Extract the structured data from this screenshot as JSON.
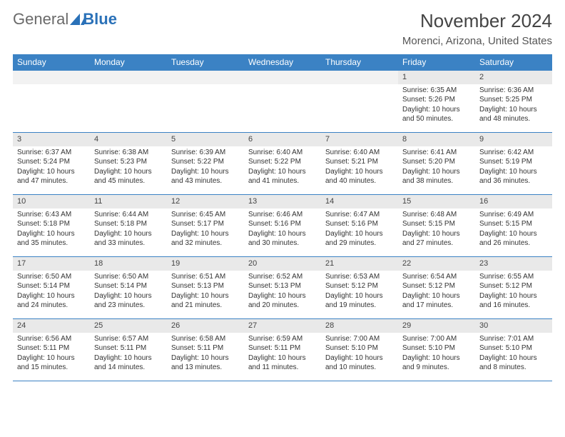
{
  "logo": {
    "general": "General",
    "blue": "Blue"
  },
  "title": "November 2024",
  "location": "Morenci, Arizona, United States",
  "colors": {
    "header_bar": "#3b82c4",
    "week_divider": "#3b82c4",
    "daynum_bg": "#e9e9e9",
    "background": "#ffffff",
    "text": "#333333",
    "logo_gray": "#6a6a6a",
    "logo_blue": "#2a71b8"
  },
  "typography": {
    "title_fontsize_pt": 20,
    "location_fontsize_pt": 11,
    "dow_fontsize_pt": 9,
    "daynum_fontsize_pt": 8,
    "body_fontsize_pt": 7.5
  },
  "days_of_week": [
    "Sunday",
    "Monday",
    "Tuesday",
    "Wednesday",
    "Thursday",
    "Friday",
    "Saturday"
  ],
  "weeks": [
    [
      {
        "n": "",
        "sunrise": "",
        "sunset": "",
        "daylight": ""
      },
      {
        "n": "",
        "sunrise": "",
        "sunset": "",
        "daylight": ""
      },
      {
        "n": "",
        "sunrise": "",
        "sunset": "",
        "daylight": ""
      },
      {
        "n": "",
        "sunrise": "",
        "sunset": "",
        "daylight": ""
      },
      {
        "n": "",
        "sunrise": "",
        "sunset": "",
        "daylight": ""
      },
      {
        "n": "1",
        "sunrise": "Sunrise: 6:35 AM",
        "sunset": "Sunset: 5:26 PM",
        "daylight": "Daylight: 10 hours and 50 minutes."
      },
      {
        "n": "2",
        "sunrise": "Sunrise: 6:36 AM",
        "sunset": "Sunset: 5:25 PM",
        "daylight": "Daylight: 10 hours and 48 minutes."
      }
    ],
    [
      {
        "n": "3",
        "sunrise": "Sunrise: 6:37 AM",
        "sunset": "Sunset: 5:24 PM",
        "daylight": "Daylight: 10 hours and 47 minutes."
      },
      {
        "n": "4",
        "sunrise": "Sunrise: 6:38 AM",
        "sunset": "Sunset: 5:23 PM",
        "daylight": "Daylight: 10 hours and 45 minutes."
      },
      {
        "n": "5",
        "sunrise": "Sunrise: 6:39 AM",
        "sunset": "Sunset: 5:22 PM",
        "daylight": "Daylight: 10 hours and 43 minutes."
      },
      {
        "n": "6",
        "sunrise": "Sunrise: 6:40 AM",
        "sunset": "Sunset: 5:22 PM",
        "daylight": "Daylight: 10 hours and 41 minutes."
      },
      {
        "n": "7",
        "sunrise": "Sunrise: 6:40 AM",
        "sunset": "Sunset: 5:21 PM",
        "daylight": "Daylight: 10 hours and 40 minutes."
      },
      {
        "n": "8",
        "sunrise": "Sunrise: 6:41 AM",
        "sunset": "Sunset: 5:20 PM",
        "daylight": "Daylight: 10 hours and 38 minutes."
      },
      {
        "n": "9",
        "sunrise": "Sunrise: 6:42 AM",
        "sunset": "Sunset: 5:19 PM",
        "daylight": "Daylight: 10 hours and 36 minutes."
      }
    ],
    [
      {
        "n": "10",
        "sunrise": "Sunrise: 6:43 AM",
        "sunset": "Sunset: 5:18 PM",
        "daylight": "Daylight: 10 hours and 35 minutes."
      },
      {
        "n": "11",
        "sunrise": "Sunrise: 6:44 AM",
        "sunset": "Sunset: 5:18 PM",
        "daylight": "Daylight: 10 hours and 33 minutes."
      },
      {
        "n": "12",
        "sunrise": "Sunrise: 6:45 AM",
        "sunset": "Sunset: 5:17 PM",
        "daylight": "Daylight: 10 hours and 32 minutes."
      },
      {
        "n": "13",
        "sunrise": "Sunrise: 6:46 AM",
        "sunset": "Sunset: 5:16 PM",
        "daylight": "Daylight: 10 hours and 30 minutes."
      },
      {
        "n": "14",
        "sunrise": "Sunrise: 6:47 AM",
        "sunset": "Sunset: 5:16 PM",
        "daylight": "Daylight: 10 hours and 29 minutes."
      },
      {
        "n": "15",
        "sunrise": "Sunrise: 6:48 AM",
        "sunset": "Sunset: 5:15 PM",
        "daylight": "Daylight: 10 hours and 27 minutes."
      },
      {
        "n": "16",
        "sunrise": "Sunrise: 6:49 AM",
        "sunset": "Sunset: 5:15 PM",
        "daylight": "Daylight: 10 hours and 26 minutes."
      }
    ],
    [
      {
        "n": "17",
        "sunrise": "Sunrise: 6:50 AM",
        "sunset": "Sunset: 5:14 PM",
        "daylight": "Daylight: 10 hours and 24 minutes."
      },
      {
        "n": "18",
        "sunrise": "Sunrise: 6:50 AM",
        "sunset": "Sunset: 5:14 PM",
        "daylight": "Daylight: 10 hours and 23 minutes."
      },
      {
        "n": "19",
        "sunrise": "Sunrise: 6:51 AM",
        "sunset": "Sunset: 5:13 PM",
        "daylight": "Daylight: 10 hours and 21 minutes."
      },
      {
        "n": "20",
        "sunrise": "Sunrise: 6:52 AM",
        "sunset": "Sunset: 5:13 PM",
        "daylight": "Daylight: 10 hours and 20 minutes."
      },
      {
        "n": "21",
        "sunrise": "Sunrise: 6:53 AM",
        "sunset": "Sunset: 5:12 PM",
        "daylight": "Daylight: 10 hours and 19 minutes."
      },
      {
        "n": "22",
        "sunrise": "Sunrise: 6:54 AM",
        "sunset": "Sunset: 5:12 PM",
        "daylight": "Daylight: 10 hours and 17 minutes."
      },
      {
        "n": "23",
        "sunrise": "Sunrise: 6:55 AM",
        "sunset": "Sunset: 5:12 PM",
        "daylight": "Daylight: 10 hours and 16 minutes."
      }
    ],
    [
      {
        "n": "24",
        "sunrise": "Sunrise: 6:56 AM",
        "sunset": "Sunset: 5:11 PM",
        "daylight": "Daylight: 10 hours and 15 minutes."
      },
      {
        "n": "25",
        "sunrise": "Sunrise: 6:57 AM",
        "sunset": "Sunset: 5:11 PM",
        "daylight": "Daylight: 10 hours and 14 minutes."
      },
      {
        "n": "26",
        "sunrise": "Sunrise: 6:58 AM",
        "sunset": "Sunset: 5:11 PM",
        "daylight": "Daylight: 10 hours and 13 minutes."
      },
      {
        "n": "27",
        "sunrise": "Sunrise: 6:59 AM",
        "sunset": "Sunset: 5:11 PM",
        "daylight": "Daylight: 10 hours and 11 minutes."
      },
      {
        "n": "28",
        "sunrise": "Sunrise: 7:00 AM",
        "sunset": "Sunset: 5:10 PM",
        "daylight": "Daylight: 10 hours and 10 minutes."
      },
      {
        "n": "29",
        "sunrise": "Sunrise: 7:00 AM",
        "sunset": "Sunset: 5:10 PM",
        "daylight": "Daylight: 10 hours and 9 minutes."
      },
      {
        "n": "30",
        "sunrise": "Sunrise: 7:01 AM",
        "sunset": "Sunset: 5:10 PM",
        "daylight": "Daylight: 10 hours and 8 minutes."
      }
    ]
  ]
}
